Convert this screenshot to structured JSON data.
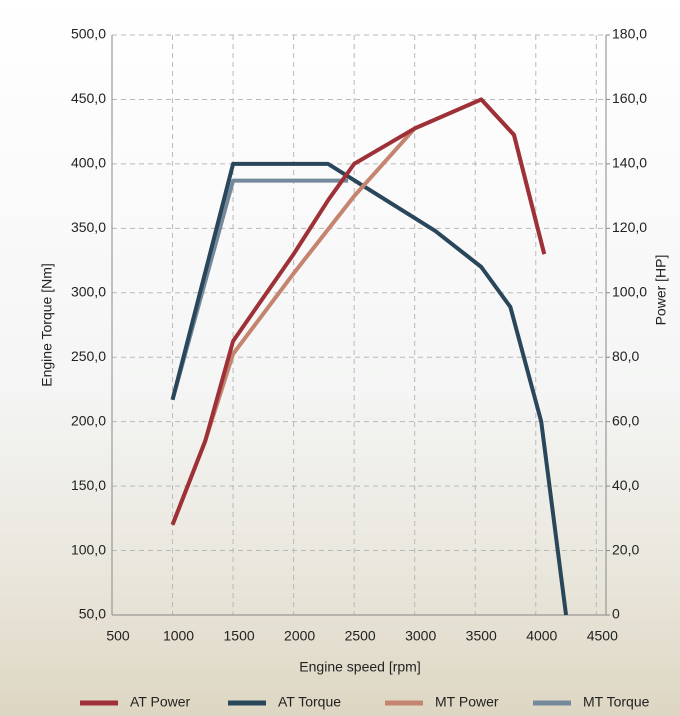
{
  "chart_data": {
    "type": "line",
    "xlabel": "Engine speed [rpm]",
    "ylabel": "Engine Torque [Nm]",
    "y2label": "Power [HP]",
    "xlim": [
      500,
      4580
    ],
    "xticks": [
      500,
      1000,
      1500,
      2000,
      2500,
      3000,
      3500,
      4000,
      4500
    ],
    "ylim": [
      50,
      500
    ],
    "yticks": [
      {
        "value": 50,
        "label": "50,0"
      },
      {
        "value": 100,
        "label": "100,0"
      },
      {
        "value": 150,
        "label": "150,0"
      },
      {
        "value": 200,
        "label": "200,0"
      },
      {
        "value": 250,
        "label": "250,0"
      },
      {
        "value": 300,
        "label": "300,0"
      },
      {
        "value": 350,
        "label": "350,0"
      },
      {
        "value": 400,
        "label": "400,0"
      },
      {
        "value": 450,
        "label": "450,0"
      },
      {
        "value": 500,
        "label": "500,0"
      }
    ],
    "y2lim": [
      0,
      180
    ],
    "y2ticks": [
      0,
      {
        "value": 20,
        "label": "20,0"
      },
      {
        "value": 40,
        "label": "40,0"
      },
      {
        "value": 60,
        "label": "60,0"
      },
      {
        "value": 80,
        "label": "80,0"
      },
      {
        "value": 100,
        "label": "100,0"
      },
      {
        "value": 120,
        "label": "120,0"
      },
      {
        "value": 140,
        "label": "140,0"
      },
      {
        "value": 160,
        "label": "160,0"
      },
      {
        "value": 180,
        "label": "180,0"
      }
    ],
    "grid": true,
    "legend": "bottom",
    "series": [
      {
        "name": "AT Power",
        "color": "#9e3138",
        "axis": "y2",
        "x": [
          1000,
          1270,
          1500,
          2000,
          2290,
          2500,
          3000,
          3550,
          3820,
          4070
        ],
        "values": [
          28,
          54,
          85,
          112,
          129,
          140,
          151,
          160,
          149,
          112
        ]
      },
      {
        "name": "AT Torque",
        "color": "#29465b",
        "axis": "y",
        "x": [
          1000,
          1500,
          2285,
          3170,
          3550,
          3790,
          4045,
          4250
        ],
        "values": [
          217,
          400,
          400,
          348,
          320,
          289,
          200,
          50
        ]
      },
      {
        "name": "MT Power",
        "color": "#c4846f",
        "axis": "y2",
        "x": [
          1000,
          1270,
          1500,
          2000,
          2500,
          3000,
          3550,
          3820,
          4070
        ],
        "values": [
          28,
          54,
          81,
          106,
          130,
          151,
          160,
          149,
          112
        ]
      },
      {
        "name": "MT Torque",
        "color": "#74899b",
        "axis": "y",
        "x": [
          1000,
          1500,
          2450
        ],
        "values": [
          217,
          387,
          387
        ]
      }
    ]
  }
}
